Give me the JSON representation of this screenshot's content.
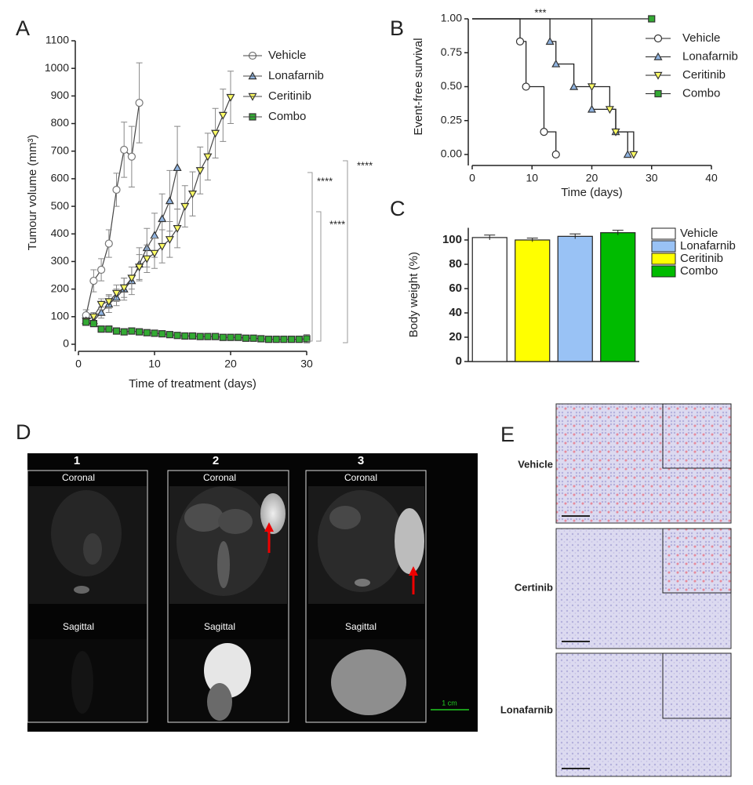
{
  "panel_labels": [
    "A",
    "B",
    "C",
    "D",
    "E"
  ],
  "chart_data": [
    {
      "type": "line",
      "ylabel": "Tumour volume (mm³)",
      "xlabel": "Time of treatment (days)",
      "xlim": [
        0,
        30
      ],
      "xticks": [
        0,
        10,
        20,
        30
      ],
      "ylim": [
        0,
        1100
      ],
      "yticks": [
        0,
        100,
        200,
        300,
        400,
        500,
        600,
        700,
        800,
        900,
        1000,
        1100
      ],
      "series": [
        {
          "name": "Vehicle",
          "color": "#777777",
          "fill": "#ffffff",
          "marker": "circle",
          "x": [
            1,
            2,
            3,
            4,
            5,
            6,
            7,
            8
          ],
          "values": [
            105,
            230,
            270,
            365,
            560,
            705,
            680,
            875
          ],
          "errors": [
            20,
            40,
            40,
            50,
            60,
            100,
            110,
            145
          ]
        },
        {
          "name": "Lonafarnib",
          "color": "#333333",
          "fill": "#8fb3e0",
          "marker": "triangle",
          "x": [
            1,
            2,
            3,
            4,
            5,
            6,
            7,
            8,
            9,
            10,
            11,
            12,
            13
          ],
          "values": [
            85,
            85,
            115,
            145,
            170,
            200,
            230,
            290,
            350,
            395,
            455,
            520,
            640
          ],
          "errors": [
            10,
            15,
            20,
            30,
            30,
            40,
            50,
            60,
            70,
            80,
            90,
            110,
            150
          ]
        },
        {
          "name": "Ceritinib",
          "color": "#333333",
          "fill": "#ffff66",
          "marker": "triangle-down",
          "x": [
            1,
            2,
            3,
            4,
            5,
            6,
            7,
            8,
            9,
            10,
            11,
            12,
            13,
            14,
            15,
            16,
            17,
            18,
            19,
            20
          ],
          "values": [
            85,
            100,
            145,
            155,
            185,
            205,
            240,
            280,
            310,
            330,
            355,
            380,
            420,
            500,
            545,
            630,
            680,
            765,
            830,
            895
          ],
          "errors": [
            10,
            15,
            20,
            25,
            30,
            35,
            40,
            45,
            50,
            55,
            60,
            65,
            70,
            75,
            80,
            85,
            85,
            90,
            95,
            95
          ]
        },
        {
          "name": "Combo",
          "color": "#333333",
          "fill": "#33aa33",
          "marker": "square",
          "x": [
            1,
            2,
            3,
            4,
            5,
            6,
            7,
            8,
            9,
            10,
            11,
            12,
            13,
            14,
            15,
            16,
            17,
            18,
            19,
            20,
            21,
            22,
            23,
            24,
            25,
            26,
            27,
            28,
            29,
            30
          ],
          "values": [
            80,
            75,
            55,
            55,
            48,
            45,
            48,
            45,
            42,
            40,
            38,
            35,
            32,
            30,
            30,
            28,
            28,
            28,
            25,
            25,
            25,
            22,
            22,
            20,
            18,
            18,
            18,
            18,
            18,
            20
          ],
          "errors": [
            10,
            10,
            10,
            8,
            8,
            8,
            10,
            10,
            8,
            8,
            8,
            8,
            8,
            8,
            8,
            8,
            8,
            8,
            8,
            8,
            8,
            8,
            8,
            8,
            8,
            8,
            8,
            8,
            8,
            15
          ]
        }
      ],
      "annotations": [
        "****",
        "****",
        "****"
      ]
    },
    {
      "type": "step",
      "ylabel": "Event-free survival",
      "xlabel": "Time (days)",
      "xlim": [
        0,
        40
      ],
      "xticks": [
        0,
        10,
        20,
        30,
        40
      ],
      "ylim": [
        0,
        1
      ],
      "yticks": [
        {
          "value": 0,
          "label": "0.00"
        },
        {
          "value": 0.25,
          "label": "0.25"
        },
        {
          "value": 0.5,
          "label": "0.50"
        },
        {
          "value": 0.75,
          "label": "0.75"
        },
        {
          "value": 1,
          "label": "1.00"
        }
      ],
      "series": [
        {
          "name": "Vehicle",
          "color": "#333333",
          "fill": "#ffffff",
          "marker": "circle",
          "x": [
            0,
            8,
            9,
            12,
            14
          ],
          "values": [
            1,
            0.833,
            0.5,
            0.167,
            0
          ]
        },
        {
          "name": "Lonafarnib",
          "color": "#333333",
          "fill": "#8fb3e0",
          "marker": "triangle",
          "x": [
            0,
            13,
            14,
            17,
            20,
            24,
            26
          ],
          "values": [
            1,
            0.833,
            0.667,
            0.5,
            0.333,
            0.167,
            0
          ]
        },
        {
          "name": "Ceritinib",
          "color": "#333333",
          "fill": "#ffff66",
          "marker": "triangle-down",
          "x": [
            0,
            20,
            23,
            24,
            27
          ],
          "values": [
            1,
            0.5,
            0.333,
            0.167,
            0
          ]
        },
        {
          "name": "Combo",
          "color": "#333333",
          "fill": "#33aa33",
          "marker": "square",
          "x": [
            0,
            30
          ],
          "values": [
            1,
            1
          ]
        }
      ],
      "annotations": [
        "***"
      ]
    },
    {
      "type": "bar",
      "ylabel": "Body weight (%)",
      "ylim": [
        0,
        110
      ],
      "yticks": [
        0,
        20,
        40,
        60,
        80,
        100
      ],
      "series": [
        {
          "name": "Vehicle",
          "color": "#ffffff",
          "values": [
            102
          ],
          "errors": [
            2
          ]
        },
        {
          "name": "Lonafarnib",
          "color": "#99c2f5",
          "values": [
            103
          ],
          "errors": [
            2
          ]
        },
        {
          "name": "Ceritinib",
          "color": "#ffff00",
          "values": [
            100
          ],
          "errors": [
            1.5
          ]
        },
        {
          "name": "Combo",
          "color": "#00bb00",
          "values": [
            106
          ],
          "errors": [
            2
          ]
        }
      ],
      "bar_order": [
        0,
        2,
        1,
        3
      ]
    }
  ],
  "mri": {
    "scans": [
      {
        "number": "1",
        "views": [
          "Coronal",
          "Sagittal"
        ]
      },
      {
        "number": "2",
        "views": [
          "Coronal",
          "Sagittal"
        ]
      },
      {
        "number": "3",
        "views": [
          "Coronal",
          "Sagittal"
        ]
      }
    ],
    "scale_bar": "1 cm"
  },
  "histology": {
    "rows": [
      "Vehicle",
      "Certinib",
      "Lonafarnib"
    ]
  }
}
